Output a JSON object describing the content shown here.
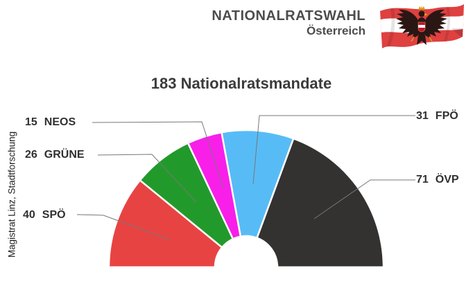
{
  "header": {
    "title": "NATIONALRATSWAHL",
    "subtitle": "Österreich"
  },
  "flag": {
    "name": "austria-flag-with-eagle",
    "stripe_red": "#df4040",
    "stripe_white": "#ffffff",
    "eagle_dark": "#2a1714",
    "eagle_gold": "#d4a017"
  },
  "attribution": "Magistrat Linz, Stadtforschung",
  "chart_data": {
    "type": "pie",
    "variant": "semicircle-donut-hemicycle",
    "title": "183 Nationalratsmandate",
    "total": 183,
    "series": [
      {
        "party": "SPÖ",
        "seats": 40,
        "color": "#e84343"
      },
      {
        "party": "GRÜNE",
        "seats": 26,
        "color": "#229a2b"
      },
      {
        "party": "NEOS",
        "seats": 15,
        "color": "#f81fe9"
      },
      {
        "party": "FPÖ",
        "seats": 31,
        "color": "#57bcf6"
      },
      {
        "party": "ÖVP",
        "seats": 71,
        "color": "#343131"
      }
    ],
    "layout": "half circle sweeping 180 degrees, segments ordered left to right, white gaps between segments, white inner notch",
    "legend_position": "callout labels with gray leader lines, left: NEOS/GRÜNE/SPÖ, right: FPÖ/ÖVP"
  }
}
